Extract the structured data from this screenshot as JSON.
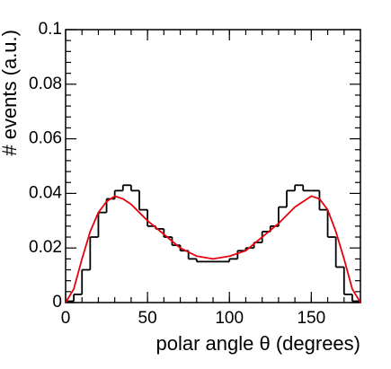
{
  "chart_data": {
    "type": "histogram",
    "xlabel": "polar angle θ (degrees)",
    "ylabel": "# events (a.u.)",
    "bins": [
      0,
      5,
      10,
      15,
      20,
      25,
      30,
      35,
      40,
      45,
      50,
      55,
      60,
      65,
      70,
      75,
      80,
      85,
      90,
      95,
      100,
      105,
      110,
      115,
      120,
      125,
      130,
      135,
      140,
      145,
      150,
      155,
      160,
      165,
      170,
      175,
      180
    ],
    "values": [
      0.0005,
      0.003,
      0.012,
      0.024,
      0.033,
      0.038,
      0.041,
      0.043,
      0.041,
      0.034,
      0.028,
      0.027,
      0.024,
      0.021,
      0.019,
      0.016,
      0.015,
      0.015,
      0.015,
      0.015,
      0.016,
      0.019,
      0.02,
      0.022,
      0.026,
      0.028,
      0.035,
      0.041,
      0.043,
      0.041,
      0.041,
      0.034,
      0.024,
      0.013,
      0.003,
      0.0005
    ],
    "color": "#000000",
    "fit": {
      "type": "line",
      "color": "#e8000b",
      "x": [
        0,
        5,
        10,
        15,
        20,
        25,
        30,
        35,
        40,
        50,
        60,
        70,
        80,
        90,
        100,
        110,
        120,
        130,
        140,
        145,
        150,
        155,
        160,
        165,
        170,
        175,
        180
      ],
      "values": [
        0,
        0.005,
        0.016,
        0.026,
        0.033,
        0.037,
        0.039,
        0.038,
        0.036,
        0.03,
        0.025,
        0.02,
        0.017,
        0.016,
        0.017,
        0.019,
        0.024,
        0.029,
        0.035,
        0.037,
        0.039,
        0.038,
        0.034,
        0.026,
        0.016,
        0.005,
        0
      ]
    },
    "xlim": [
      0,
      180
    ],
    "xticks": [
      0,
      50,
      100,
      150
    ],
    "ylim": [
      0,
      0.1
    ],
    "yticks": [
      0,
      0.02,
      0.04,
      0.06,
      0.08,
      0.1
    ]
  }
}
